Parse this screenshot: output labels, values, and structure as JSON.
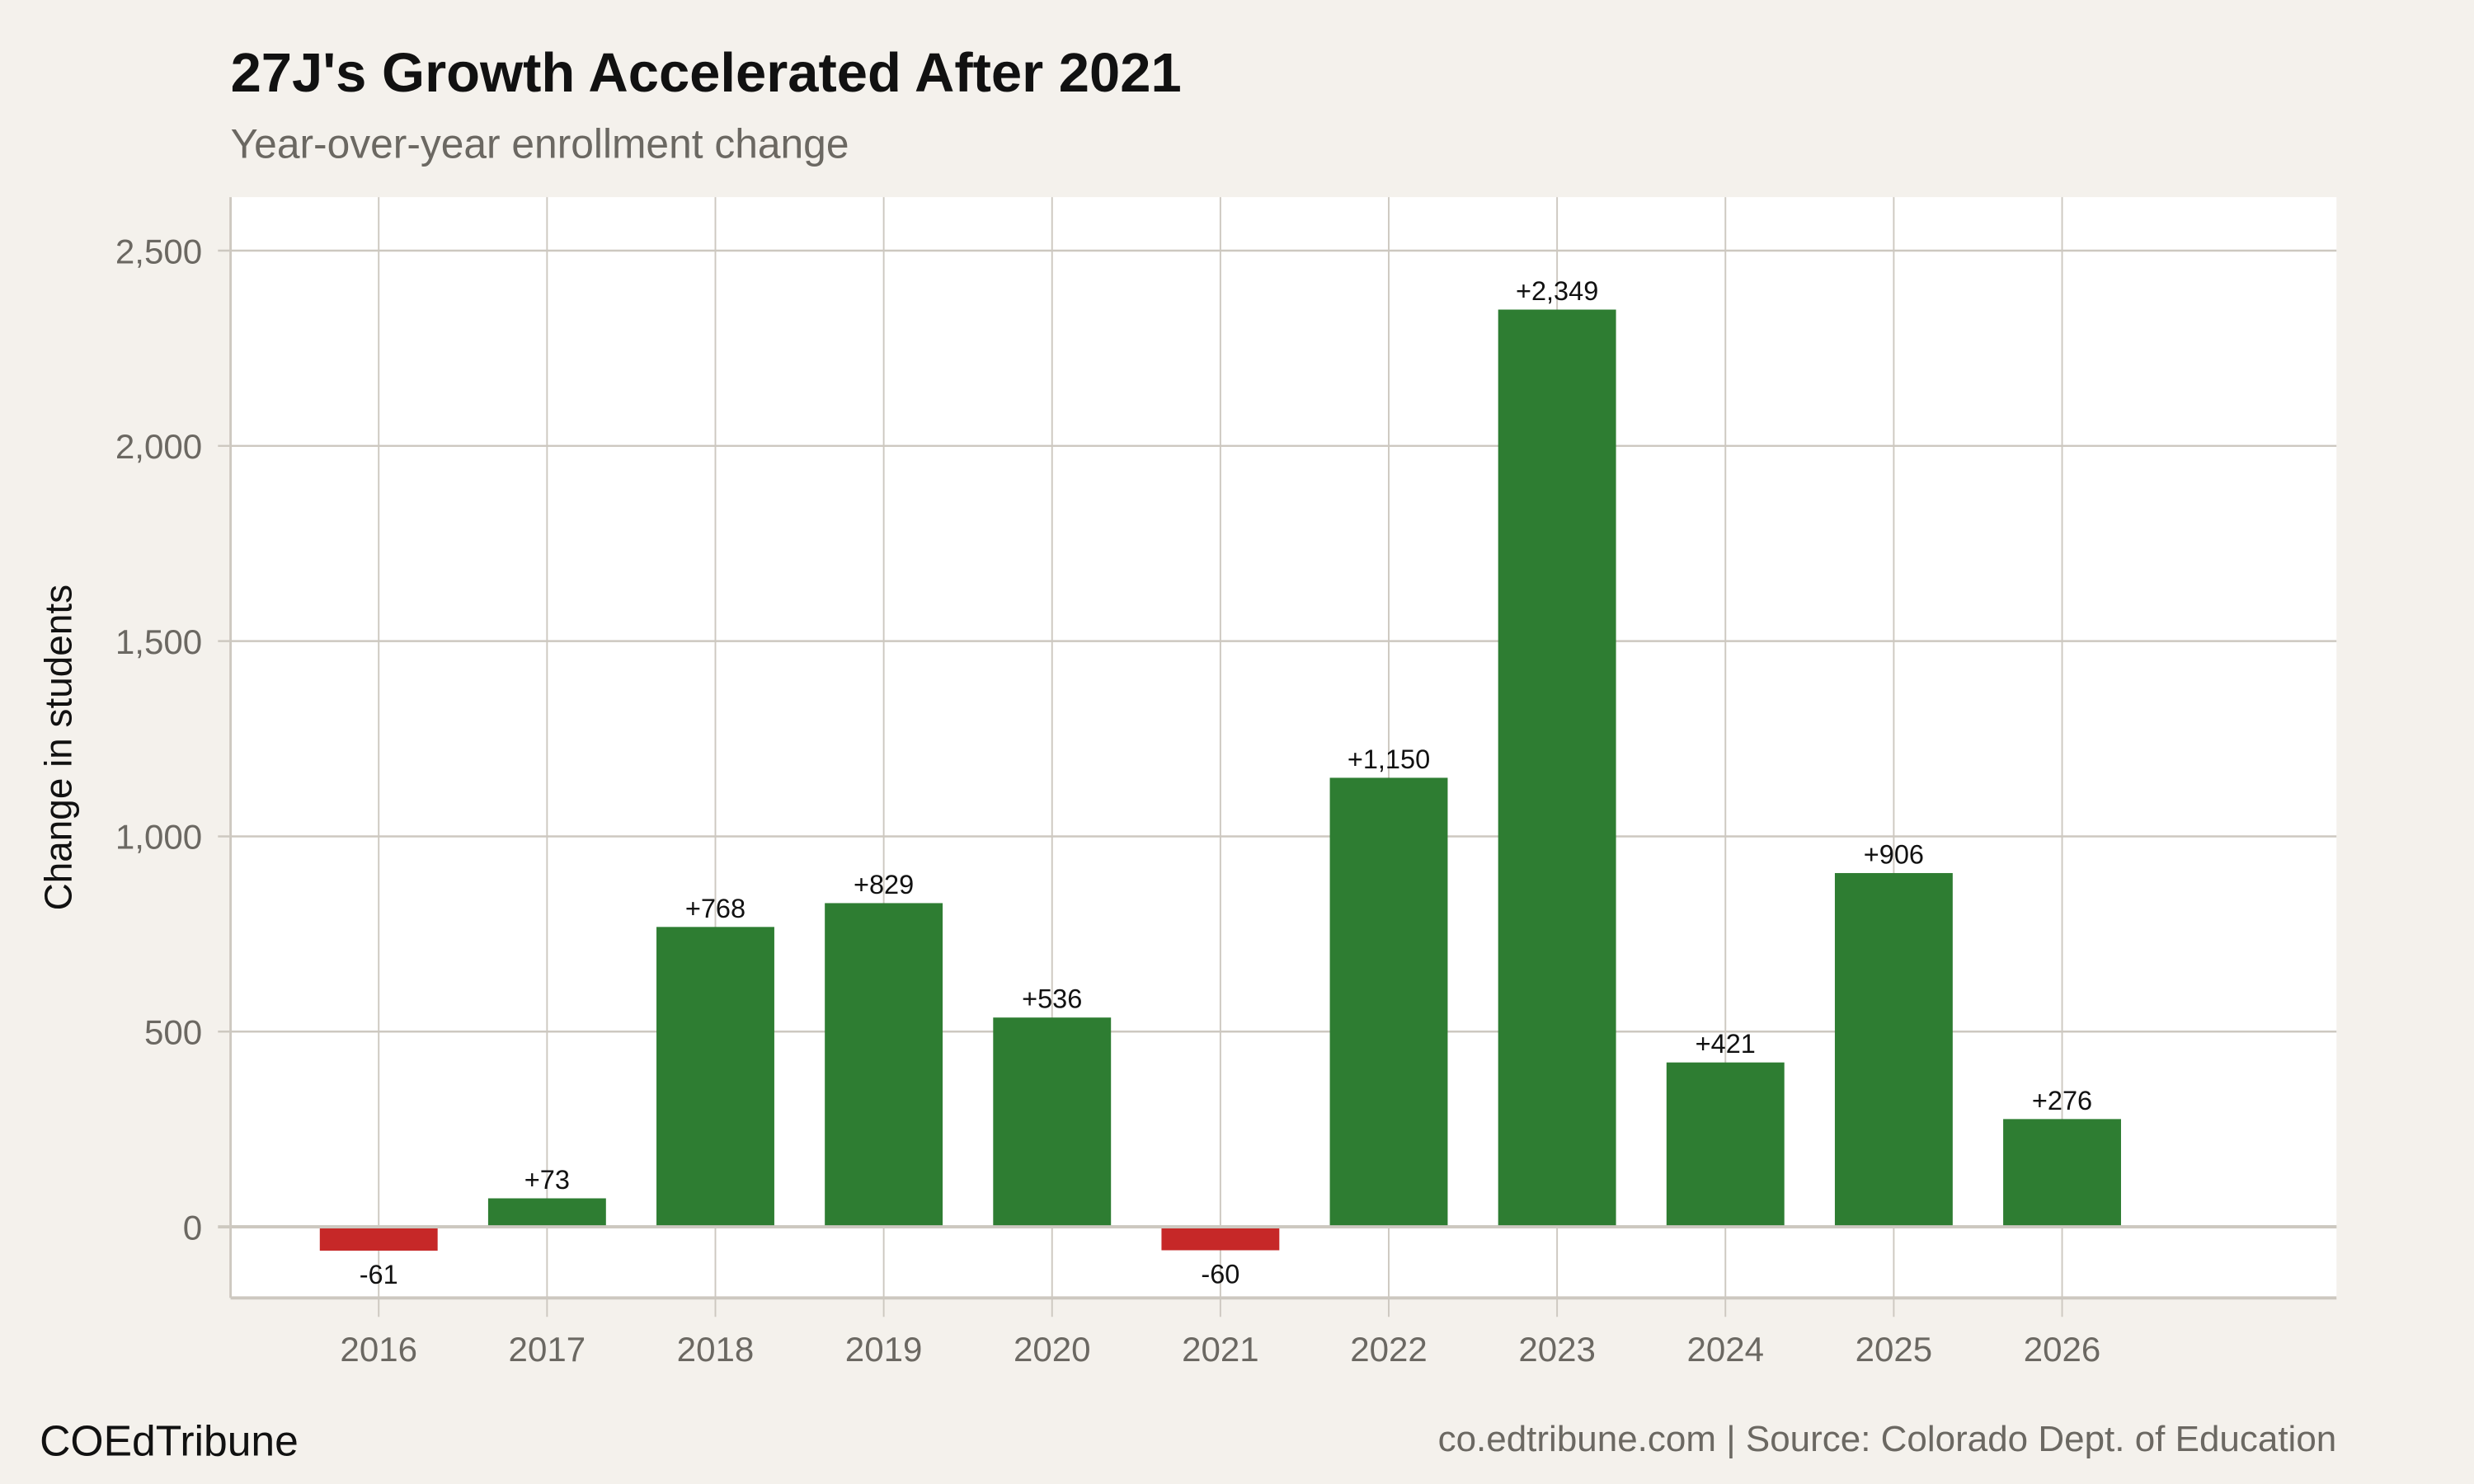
{
  "chart_data": {
    "type": "bar",
    "title": "27J's Growth Accelerated After 2021",
    "subtitle": "Year-over-year enrollment change",
    "xlabel": "",
    "ylabel": "Change in students",
    "categories": [
      "2016",
      "2017",
      "2018",
      "2019",
      "2020",
      "2021",
      "2022",
      "2023",
      "2024",
      "2025",
      "2026"
    ],
    "values": [
      -61,
      73,
      768,
      829,
      536,
      -60,
      1150,
      2349,
      421,
      906,
      276
    ],
    "data_labels": [
      "-61",
      "+73",
      "+768",
      "+829",
      "+536",
      "-60",
      "+1,150",
      "+2,349",
      "+421",
      "+906",
      "+276"
    ],
    "ylim": [
      -182,
      2637
    ],
    "xlim": [
      2015.12,
      2027.63
    ],
    "yticks": [
      0,
      500,
      1000,
      1500,
      2000,
      2500
    ],
    "ytick_labels": [
      "0",
      "500",
      "1,000",
      "1,500",
      "2,000",
      "2,500"
    ],
    "grid": true,
    "colors": {
      "positive": "#2e7d32",
      "negative": "#c62828",
      "background": "#f4f1ec",
      "panel": "#ffffff",
      "grid": "#cdc8c0"
    }
  },
  "footer": {
    "brand": "COEdTribune",
    "source": "co.edtribune.com | Source: Colorado Dept. of Education"
  }
}
